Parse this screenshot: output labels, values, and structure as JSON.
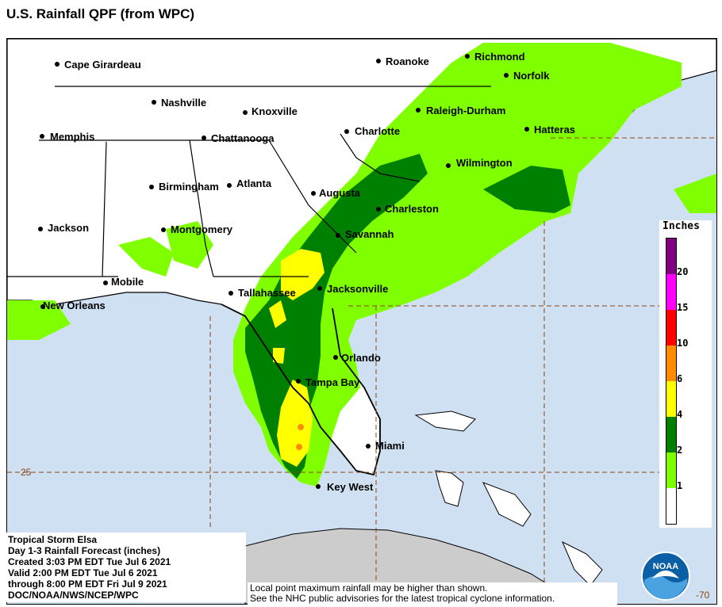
{
  "title": "U.S. Rainfall QPF (from WPC)",
  "cities": [
    {
      "name": "Cape Girardeau"
    },
    {
      "name": "Roanoke"
    },
    {
      "name": "Richmond"
    },
    {
      "name": "Norfolk"
    },
    {
      "name": "Nashville"
    },
    {
      "name": "Knoxville"
    },
    {
      "name": "Raleigh-Durham"
    },
    {
      "name": "Memphis"
    },
    {
      "name": "Chattanooga"
    },
    {
      "name": "Charlotte"
    },
    {
      "name": "Hatteras"
    },
    {
      "name": "Wilmington"
    },
    {
      "name": "Birmingham"
    },
    {
      "name": "Atlanta"
    },
    {
      "name": "Augusta"
    },
    {
      "name": "Charleston"
    },
    {
      "name": "Jackson"
    },
    {
      "name": "Montgomery"
    },
    {
      "name": "Savannah"
    },
    {
      "name": "Mobile"
    },
    {
      "name": "Tallahassee"
    },
    {
      "name": "Jacksonville"
    },
    {
      "name": "New Orleans"
    },
    {
      "name": "Orlando"
    },
    {
      "name": "Tampa Bay"
    },
    {
      "name": "Miami"
    },
    {
      "name": "Key West"
    }
  ],
  "grid_labels": {
    "lat": "25",
    "lon": "-70"
  },
  "legend": {
    "title": "Inches",
    "levels": [
      {
        "label": "20",
        "color": "#800080"
      },
      {
        "label": "15",
        "color": "#ff00ff"
      },
      {
        "label": "10",
        "color": "#ff0000"
      },
      {
        "label": "6",
        "color": "#ff8c00"
      },
      {
        "label": "4",
        "color": "#ffff00"
      },
      {
        "label": "2",
        "color": "#008000"
      },
      {
        "label": "1",
        "color": "#80ff00"
      },
      {
        "label": "",
        "color": "#ffffff"
      }
    ]
  },
  "info": {
    "line1": "Tropical Storm Elsa",
    "line2": "Day 1-3 Rainfall Forecast (inches)",
    "line3": "Created 3:03 PM EDT Tue Jul 6 2021",
    "line4": "Valid 2:00 PM EDT Tue Jul 6 2021",
    "line5": "through 8:00 PM EDT Fri Jul 9 2021",
    "line6": "DOC/NOAA/NWS/NCEP/WPC"
  },
  "note": {
    "line1": "Local point maximum rainfall may be higher than shown.",
    "line2": "See the NHC public advisories for the latest tropical cyclone information."
  },
  "logo": {
    "text": "NOAA"
  },
  "colors": {
    "ocean": "#cfe0f2",
    "land": "#ffffff",
    "green_light": "#80ff00",
    "green_dark": "#008000",
    "yellow": "#ffff00",
    "orange": "#ff8c00",
    "cuba": "#cccccc"
  }
}
